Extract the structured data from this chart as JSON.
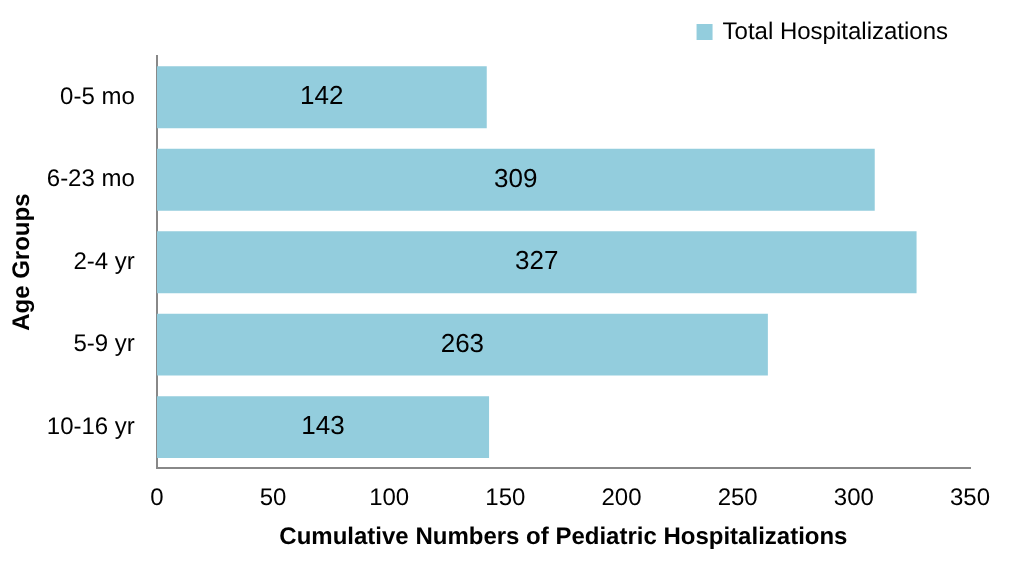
{
  "chart_data": {
    "type": "bar",
    "orientation": "horizontal",
    "xlabel": "Cumulative Numbers of Pediatric Hospitalizations",
    "ylabel": "Age Groups",
    "categories": [
      "0-5 mo",
      "6-23 mo",
      "2-4 yr",
      "5-9 yr",
      "10-16 yr"
    ],
    "series": [
      {
        "name": "Total Hospitalizations",
        "color": "#93cddd",
        "values": [
          142,
          309,
          327,
          263,
          143
        ]
      }
    ],
    "xlim": [
      0,
      350
    ],
    "xticks": [
      0,
      50,
      100,
      150,
      200,
      250,
      300,
      350
    ],
    "grid": false,
    "legend": "top right",
    "data_labels": true
  }
}
